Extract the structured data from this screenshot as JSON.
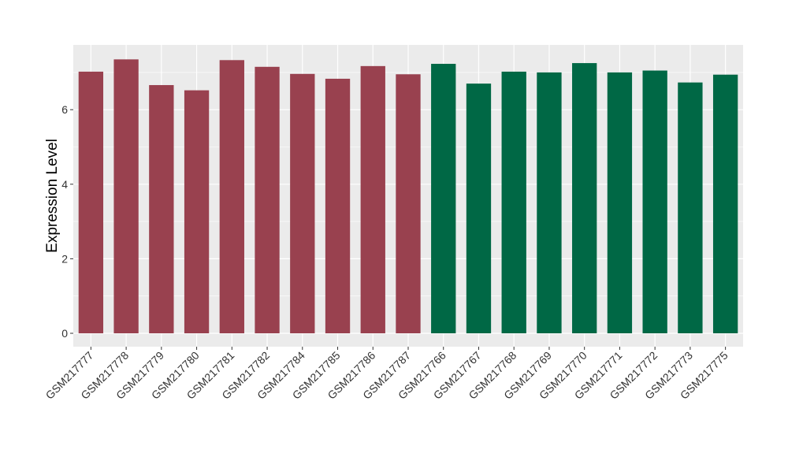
{
  "chart_data": {
    "type": "bar",
    "title": "",
    "xlabel": "",
    "ylabel": "Expression Level",
    "ylim": [
      0,
      7.5
    ],
    "yticks": [
      0,
      2,
      4,
      6
    ],
    "grid": true,
    "legend": "none",
    "categories": [
      "GSM217777",
      "GSM217778",
      "GSM217779",
      "GSM217780",
      "GSM217781",
      "GSM217782",
      "GSM217784",
      "GSM217785",
      "GSM217786",
      "GSM217787",
      "GSM217766",
      "GSM217767",
      "GSM217768",
      "GSM217769",
      "GSM217770",
      "GSM217771",
      "GSM217772",
      "GSM217773",
      "GSM217775"
    ],
    "values": [
      7.02,
      7.35,
      6.66,
      6.52,
      7.33,
      7.15,
      6.96,
      6.83,
      7.17,
      6.95,
      7.23,
      6.7,
      7.02,
      7.0,
      7.25,
      7.0,
      7.05,
      6.73,
      6.94
    ],
    "bar_colors": [
      "#99414f",
      "#99414f",
      "#99414f",
      "#99414f",
      "#99414f",
      "#99414f",
      "#99414f",
      "#99414f",
      "#99414f",
      "#99414f",
      "#006845",
      "#006845",
      "#006845",
      "#006845",
      "#006845",
      "#006845",
      "#006845",
      "#006845",
      "#006845"
    ],
    "panel_background": "#ebebeb",
    "grid_color": "#ffffff"
  }
}
